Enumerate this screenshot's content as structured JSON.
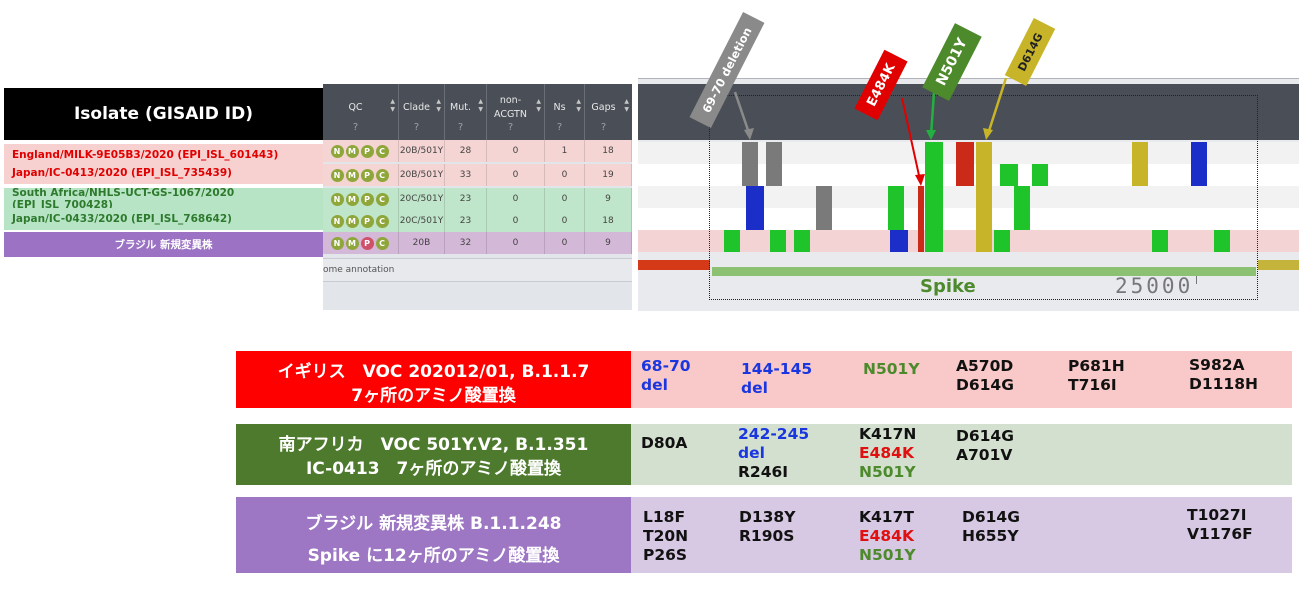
{
  "isolates": {
    "header": "Isolate (GISAID ID)",
    "rows": [
      {
        "name": "England/MILK-9E05B3/2020 (EPI_ISL_601443)",
        "clade": "20B/501Y",
        "mut": "28",
        "nonacgtn": "0",
        "ns": "1",
        "gaps": "18"
      },
      {
        "name": "Japan/IC-0413/2020 (EPI_ISL_735439)",
        "clade": "20B/501Y",
        "mut": "33",
        "nonacgtn": "0",
        "ns": "0",
        "gaps": "19"
      },
      {
        "name": "South Africa/NHLS-UCT-GS-1067/2020 (EPI_ISL_700428)",
        "clade": "20C/501Y",
        "mut": "23",
        "nonacgtn": "0",
        "ns": "0",
        "gaps": "9"
      },
      {
        "name": "Japan/IC-0433/2020 (EPI_ISL_768642)",
        "clade": "20C/501Y",
        "mut": "23",
        "nonacgtn": "0",
        "ns": "0",
        "gaps": "18"
      },
      {
        "name": "ブラジル 新規変異株",
        "clade": "20B",
        "mut": "32",
        "nonacgtn": "0",
        "ns": "0",
        "gaps": "9"
      }
    ]
  },
  "qc_table": {
    "columns": [
      "QC",
      "Clade",
      "Mut.",
      "non-\nACGTN",
      "Ns",
      "Gaps"
    ],
    "unknown_mark": "?",
    "badges": [
      "N",
      "M",
      "P",
      "C"
    ],
    "annotation_label": "ome annotation"
  },
  "genome_viewer": {
    "gene_label": "Spike",
    "position_label": "25000",
    "colors": {
      "red": "#cc2a18",
      "green": "#1ec42a",
      "blue": "#1b2fc8",
      "gray": "#7a7a7a",
      "olive": "#c8b428"
    }
  },
  "callouts": {
    "deletion": "69-70 deletion",
    "e484k": "E484K",
    "n501y": "N501Y",
    "d614g": "D614G"
  },
  "variants": [
    {
      "label_line1": "イギリス　VOC 202012/01, B.1.1.7",
      "label_line2": "7ヶ所のアミノ酸置換",
      "cols": [
        [
          "68-70",
          "del"
        ],
        [
          "144-145",
          "del"
        ],
        [
          "N501Y"
        ],
        [
          "A570D",
          "D614G"
        ],
        [
          "P681H",
          "T716I"
        ],
        [
          "S982A",
          "D1118H"
        ]
      ]
    },
    {
      "label_line1": "南アフリカ　VOC 501Y.V2, B.1.351",
      "label_line2": "IC-0413　7ヶ所のアミノ酸置換",
      "cols": [
        [
          "D80A"
        ],
        [
          "242-245",
          "del",
          "R246I"
        ],
        [
          "K417N",
          "E484K",
          "N501Y"
        ],
        [
          "D614G",
          "A701V"
        ]
      ]
    },
    {
      "label_line1": "ブラジル 新規変異株 B.1.1.248",
      "label_line2": "Spike に12ヶ所のアミノ酸置換",
      "cols": [
        [
          "L18F",
          "T20N",
          "P26S"
        ],
        [
          "D138Y",
          "R190S"
        ],
        [
          "K417T",
          "E484K",
          "N501Y"
        ],
        [
          "D614G",
          "H655Y"
        ],
        [
          "T1027I",
          "V1176F"
        ]
      ]
    }
  ]
}
